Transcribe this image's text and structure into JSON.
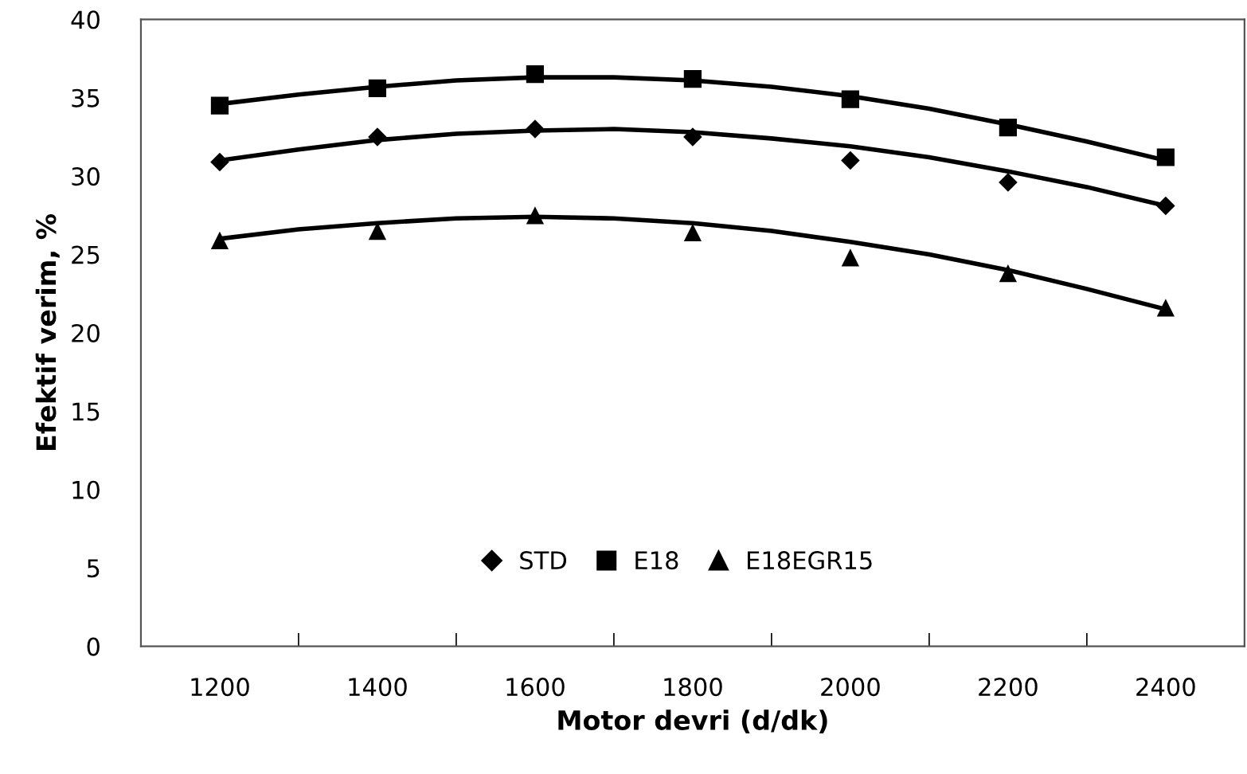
{
  "chart_data": {
    "type": "scatter",
    "xlabel": "Motor devri (d/dk)",
    "ylabel": "Efektif verim, %",
    "x": [
      1200,
      1400,
      1600,
      1800,
      2000,
      2200,
      2400
    ],
    "xlim": [
      1100,
      2500
    ],
    "xticks": [
      1200,
      {
        "value": 1300,
        "label": null
      },
      1400,
      {
        "value": 1500,
        "label": null
      },
      1600,
      {
        "value": 1700,
        "label": null
      },
      1800,
      {
        "value": 1900,
        "label": null
      },
      2000,
      {
        "value": 2100,
        "label": null
      },
      2200,
      {
        "value": 2300,
        "label": null
      },
      2400
    ],
    "ylim": [
      0,
      40
    ],
    "yticks": [
      0,
      5,
      10,
      15,
      20,
      25,
      30,
      35,
      40
    ],
    "grid": false,
    "legend": "bottom",
    "series": [
      {
        "name": "STD",
        "color": "#000000",
        "marker": "diamond",
        "values": [
          30.9,
          32.5,
          33.0,
          32.5,
          31.0,
          29.6,
          28.1
        ]
      },
      {
        "name": "E18",
        "color": "#000000",
        "marker": "square",
        "values": [
          34.5,
          35.6,
          36.5,
          36.2,
          34.9,
          33.1,
          31.2
        ]
      },
      {
        "name": "E18EGR15",
        "color": "#000000",
        "marker": "triangle",
        "values": [
          25.9,
          26.5,
          27.5,
          26.4,
          24.8,
          23.8,
          21.6
        ]
      },
      {
        "type": "line",
        "color": "#000000",
        "marker": "none",
        "line_style": "solid",
        "x": [
          1200,
          1300,
          1400,
          1500,
          1600,
          1700,
          1800,
          1900,
          2000,
          2100,
          2200,
          2300,
          2400
        ],
        "values": [
          31.0,
          31.7,
          32.3,
          32.7,
          32.9,
          33.0,
          32.8,
          32.4,
          31.9,
          31.2,
          30.3,
          29.3,
          28.1
        ]
      },
      {
        "type": "line",
        "color": "#000000",
        "marker": "none",
        "line_style": "solid",
        "x": [
          1200,
          1300,
          1400,
          1500,
          1600,
          1700,
          1800,
          1900,
          2000,
          2100,
          2200,
          2300,
          2400
        ],
        "values": [
          34.6,
          35.2,
          35.7,
          36.1,
          36.3,
          36.3,
          36.1,
          35.7,
          35.1,
          34.3,
          33.3,
          32.2,
          31.0
        ]
      },
      {
        "type": "line",
        "color": "#000000",
        "marker": "none",
        "line_style": "solid",
        "x": [
          1200,
          1300,
          1400,
          1500,
          1600,
          1700,
          1800,
          1900,
          2000,
          2100,
          2200,
          2300,
          2400
        ],
        "values": [
          26.0,
          26.6,
          27.0,
          27.3,
          27.4,
          27.3,
          27.0,
          26.5,
          25.8,
          25.0,
          24.0,
          22.8,
          21.5
        ]
      }
    ]
  }
}
